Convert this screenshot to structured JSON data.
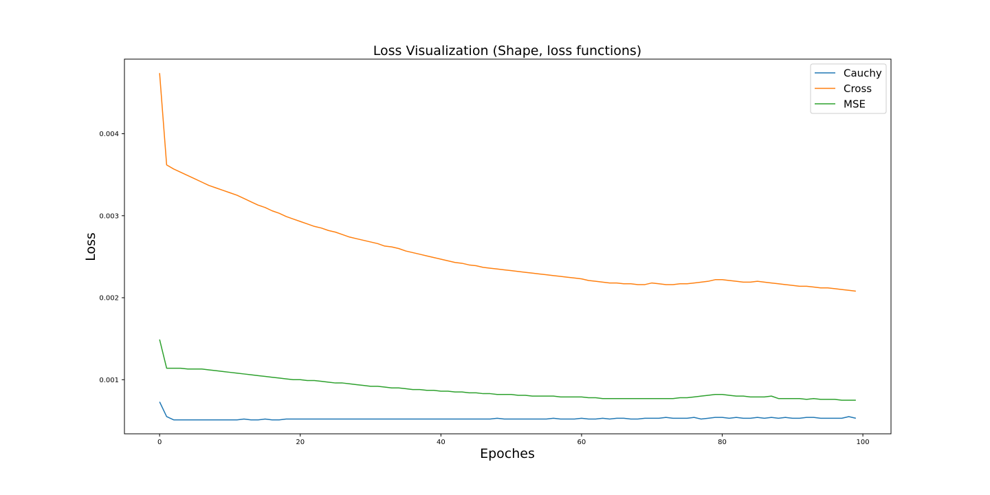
{
  "chart_data": {
    "type": "line",
    "title": "Loss Visualization (Shape, loss functions)",
    "xlabel": "Epoches",
    "ylabel": "Loss",
    "xlim": [
      -5,
      104
    ],
    "ylim": [
      0.00034,
      0.00491
    ],
    "xticks": [
      0,
      20,
      40,
      60,
      80,
      100
    ],
    "xtick_labels": [
      "0",
      "20",
      "40",
      "60",
      "80",
      "100"
    ],
    "yticks": [
      0.001,
      0.002,
      0.003,
      0.004
    ],
    "ytick_labels": [
      "0.001",
      "0.002",
      "0.003",
      "0.004"
    ],
    "grid": false,
    "legend_position": "top-right",
    "colors": {
      "Cauchy": "#1f77b4",
      "Cross": "#ff7f0e",
      "MSE": "#2ca02c"
    },
    "x": [
      0,
      1,
      2,
      3,
      4,
      5,
      6,
      7,
      8,
      9,
      10,
      11,
      12,
      13,
      14,
      15,
      16,
      17,
      18,
      19,
      20,
      21,
      22,
      23,
      24,
      25,
      26,
      27,
      28,
      29,
      30,
      31,
      32,
      33,
      34,
      35,
      36,
      37,
      38,
      39,
      40,
      41,
      42,
      43,
      44,
      45,
      46,
      47,
      48,
      49,
      50,
      51,
      52,
      53,
      54,
      55,
      56,
      57,
      58,
      59,
      60,
      61,
      62,
      63,
      64,
      65,
      66,
      67,
      68,
      69,
      70,
      71,
      72,
      73,
      74,
      75,
      76,
      77,
      78,
      79,
      80,
      81,
      82,
      83,
      84,
      85,
      86,
      87,
      88,
      89,
      90,
      91,
      92,
      93,
      94,
      95,
      96,
      97,
      98,
      99
    ],
    "series": [
      {
        "name": "Cauchy",
        "values": [
          0.00073,
          0.00055,
          0.00051,
          0.00051,
          0.00051,
          0.00051,
          0.00051,
          0.00051,
          0.00051,
          0.00051,
          0.00051,
          0.00051,
          0.00052,
          0.00051,
          0.00051,
          0.00052,
          0.00051,
          0.00051,
          0.00052,
          0.00052,
          0.00052,
          0.00052,
          0.00052,
          0.00052,
          0.00052,
          0.00052,
          0.00052,
          0.00052,
          0.00052,
          0.00052,
          0.00052,
          0.00052,
          0.00052,
          0.00052,
          0.00052,
          0.00052,
          0.00052,
          0.00052,
          0.00052,
          0.00052,
          0.00052,
          0.00052,
          0.00052,
          0.00052,
          0.00052,
          0.00052,
          0.00052,
          0.00052,
          0.00053,
          0.00052,
          0.00052,
          0.00052,
          0.00052,
          0.00052,
          0.00052,
          0.00052,
          0.00053,
          0.00052,
          0.00052,
          0.00052,
          0.00053,
          0.00052,
          0.00052,
          0.00053,
          0.00052,
          0.00053,
          0.00053,
          0.00052,
          0.00052,
          0.00053,
          0.00053,
          0.00053,
          0.00054,
          0.00053,
          0.00053,
          0.00053,
          0.00054,
          0.00052,
          0.00053,
          0.00054,
          0.00054,
          0.00053,
          0.00054,
          0.00053,
          0.00053,
          0.00054,
          0.00053,
          0.00054,
          0.00053,
          0.00054,
          0.00053,
          0.00053,
          0.00054,
          0.00054,
          0.00053,
          0.00053,
          0.00053,
          0.00053,
          0.00055,
          0.00053
        ]
      },
      {
        "name": "Cross",
        "values": [
          0.00474,
          0.00362,
          0.00357,
          0.00353,
          0.00349,
          0.00345,
          0.00341,
          0.00337,
          0.00334,
          0.00331,
          0.00328,
          0.00325,
          0.00321,
          0.00317,
          0.00313,
          0.0031,
          0.00306,
          0.00303,
          0.00299,
          0.00296,
          0.00293,
          0.0029,
          0.00287,
          0.00285,
          0.00282,
          0.0028,
          0.00277,
          0.00274,
          0.00272,
          0.0027,
          0.00268,
          0.00266,
          0.00263,
          0.00262,
          0.0026,
          0.00257,
          0.00255,
          0.00253,
          0.00251,
          0.00249,
          0.00247,
          0.00245,
          0.00243,
          0.00242,
          0.0024,
          0.00239,
          0.00237,
          0.00236,
          0.00235,
          0.00234,
          0.00233,
          0.00232,
          0.00231,
          0.0023,
          0.00229,
          0.00228,
          0.00227,
          0.00226,
          0.00225,
          0.00224,
          0.00223,
          0.00221,
          0.0022,
          0.00219,
          0.00218,
          0.00218,
          0.00217,
          0.00217,
          0.00216,
          0.00216,
          0.00218,
          0.00217,
          0.00216,
          0.00216,
          0.00217,
          0.00217,
          0.00218,
          0.00219,
          0.0022,
          0.00222,
          0.00222,
          0.00221,
          0.0022,
          0.00219,
          0.00219,
          0.0022,
          0.00219,
          0.00218,
          0.00217,
          0.00216,
          0.00215,
          0.00214,
          0.00214,
          0.00213,
          0.00212,
          0.00212,
          0.00211,
          0.0021,
          0.00209,
          0.00208
        ]
      },
      {
        "name": "MSE",
        "values": [
          0.00149,
          0.00114,
          0.00114,
          0.00114,
          0.00113,
          0.00113,
          0.00113,
          0.00112,
          0.00111,
          0.0011,
          0.00109,
          0.00108,
          0.00107,
          0.00106,
          0.00105,
          0.00104,
          0.00103,
          0.00102,
          0.00101,
          0.001,
          0.001,
          0.00099,
          0.00099,
          0.00098,
          0.00097,
          0.00096,
          0.00096,
          0.00095,
          0.00094,
          0.00093,
          0.00092,
          0.00092,
          0.00091,
          0.0009,
          0.0009,
          0.00089,
          0.00088,
          0.00088,
          0.00087,
          0.00087,
          0.00086,
          0.00086,
          0.00085,
          0.00085,
          0.00084,
          0.00084,
          0.00083,
          0.00083,
          0.00082,
          0.00082,
          0.00082,
          0.00081,
          0.00081,
          0.0008,
          0.0008,
          0.0008,
          0.0008,
          0.00079,
          0.00079,
          0.00079,
          0.00079,
          0.00078,
          0.00078,
          0.00077,
          0.00077,
          0.00077,
          0.00077,
          0.00077,
          0.00077,
          0.00077,
          0.00077,
          0.00077,
          0.00077,
          0.00077,
          0.00078,
          0.00078,
          0.00079,
          0.0008,
          0.00081,
          0.00082,
          0.00082,
          0.00081,
          0.0008,
          0.0008,
          0.00079,
          0.00079,
          0.00079,
          0.0008,
          0.00077,
          0.00077,
          0.00077,
          0.00077,
          0.00076,
          0.00077,
          0.00076,
          0.00076,
          0.00076,
          0.00075,
          0.00075,
          0.00075
        ]
      }
    ]
  }
}
